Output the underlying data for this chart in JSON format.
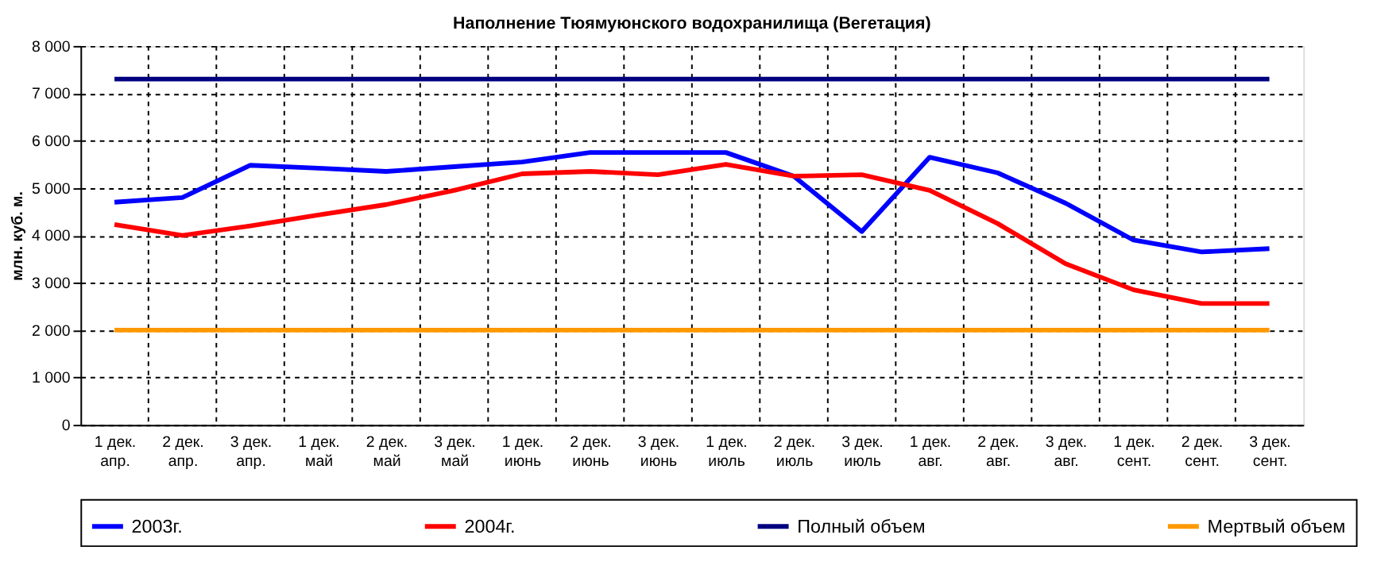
{
  "chart_data": {
    "type": "line",
    "title": "Наполнение Тюямуюнского водохранилища (Вегетация)",
    "ylabel": "млн. куб. м.",
    "categories": [
      "1 дек.\nапр.",
      "2 дек.\nапр.",
      "3 дек.\nапр.",
      "1 дек.\nмай",
      "2 дек.\nмай",
      "3 дек.\nмай",
      "1 дек.\nиюнь",
      "2 дек.\nиюнь",
      "3 дек.\nиюнь",
      "1 дек.\nиюль",
      "2 дек.\nиюль",
      "3 дек.\nиюль",
      "1 дек.\nавг.",
      "2 дек.\nавг.",
      "3 дек.\nавг.",
      "1 дек.\nсент.",
      "2 дек.\nсент.",
      "3 дек.\nсент."
    ],
    "series": [
      {
        "name": "2003г.",
        "color": "#0000ff",
        "values": [
          4700,
          4800,
          5480,
          5420,
          5350,
          5450,
          5550,
          5750,
          5750,
          5750,
          5250,
          4080,
          5650,
          5320,
          4680,
          3900,
          3650,
          3720
        ]
      },
      {
        "name": "2004г.",
        "color": "#ff0000",
        "values": [
          4230,
          4000,
          4200,
          4430,
          4650,
          4950,
          5300,
          5350,
          5280,
          5500,
          5250,
          5280,
          4950,
          4250,
          3400,
          2850,
          2560,
          2560
        ]
      },
      {
        "name": "Полный объем",
        "color": "#000080",
        "values": [
          7300,
          7300,
          7300,
          7300,
          7300,
          7300,
          7300,
          7300,
          7300,
          7300,
          7300,
          7300,
          7300,
          7300,
          7300,
          7300,
          7300,
          7300
        ]
      },
      {
        "name": "Мертвый объем",
        "color": "#ff9900",
        "values": [
          2000,
          2000,
          2000,
          2000,
          2000,
          2000,
          2000,
          2000,
          2000,
          2000,
          2000,
          2000,
          2000,
          2000,
          2000,
          2000,
          2000,
          2000
        ]
      }
    ],
    "ylim": [
      0,
      8000
    ],
    "yticks": [
      {
        "value": 0,
        "label": "0"
      },
      {
        "value": 1000,
        "label": "1 000"
      },
      {
        "value": 2000,
        "label": "2 000"
      },
      {
        "value": 3000,
        "label": "3 000"
      },
      {
        "value": 4000,
        "label": "4 000"
      },
      {
        "value": 5000,
        "label": "5 000"
      },
      {
        "value": 6000,
        "label": "6 000"
      },
      {
        "value": 7000,
        "label": "7 000"
      },
      {
        "value": 8000,
        "label": "8 000"
      }
    ],
    "grid": true,
    "legend": "bottom",
    "marker": "none",
    "line_style": "solid"
  }
}
